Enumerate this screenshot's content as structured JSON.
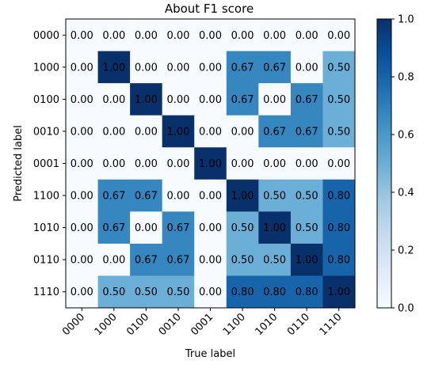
{
  "chart_data": {
    "type": "heatmap",
    "title": "About F1 score",
    "xlabel": "True label",
    "ylabel": "Predicted label",
    "x_categories": [
      "0000",
      "1000",
      "0100",
      "0010",
      "0001",
      "1100",
      "1010",
      "0110",
      "1110"
    ],
    "y_categories": [
      "0000",
      "1000",
      "0100",
      "0010",
      "0001",
      "1100",
      "1010",
      "0110",
      "1110"
    ],
    "values": [
      [
        0.0,
        0.0,
        0.0,
        0.0,
        0.0,
        0.0,
        0.0,
        0.0,
        0.0
      ],
      [
        0.0,
        1.0,
        0.0,
        0.0,
        0.0,
        0.67,
        0.67,
        0.0,
        0.5
      ],
      [
        0.0,
        0.0,
        1.0,
        0.0,
        0.0,
        0.67,
        0.0,
        0.67,
        0.5
      ],
      [
        0.0,
        0.0,
        0.0,
        1.0,
        0.0,
        0.0,
        0.67,
        0.67,
        0.5
      ],
      [
        0.0,
        0.0,
        0.0,
        0.0,
        1.0,
        0.0,
        0.0,
        0.0,
        0.0
      ],
      [
        0.0,
        0.67,
        0.67,
        0.0,
        0.0,
        1.0,
        0.5,
        0.5,
        0.8
      ],
      [
        0.0,
        0.67,
        0.0,
        0.67,
        0.0,
        0.5,
        1.0,
        0.5,
        0.8
      ],
      [
        0.0,
        0.0,
        0.67,
        0.67,
        0.0,
        0.5,
        0.5,
        1.0,
        0.8
      ],
      [
        0.0,
        0.5,
        0.5,
        0.5,
        0.0,
        0.8,
        0.8,
        0.8,
        1.0
      ]
    ],
    "value_format": "2 decimals",
    "colormap": "Blues",
    "colorbar": {
      "range": [
        0.0,
        1.0
      ],
      "ticks": [
        0.0,
        0.2,
        0.4,
        0.6,
        0.8,
        1.0
      ],
      "tick_labels": [
        "0.0",
        "0.2",
        "0.4",
        "0.6",
        "0.8",
        "1.0"
      ]
    },
    "grid": false,
    "colors": {
      "low": "#f7fbff",
      "mid_low": "#c6dbef",
      "mid": "#6baed6",
      "mid_high": "#2171b5",
      "high": "#08306b"
    }
  }
}
